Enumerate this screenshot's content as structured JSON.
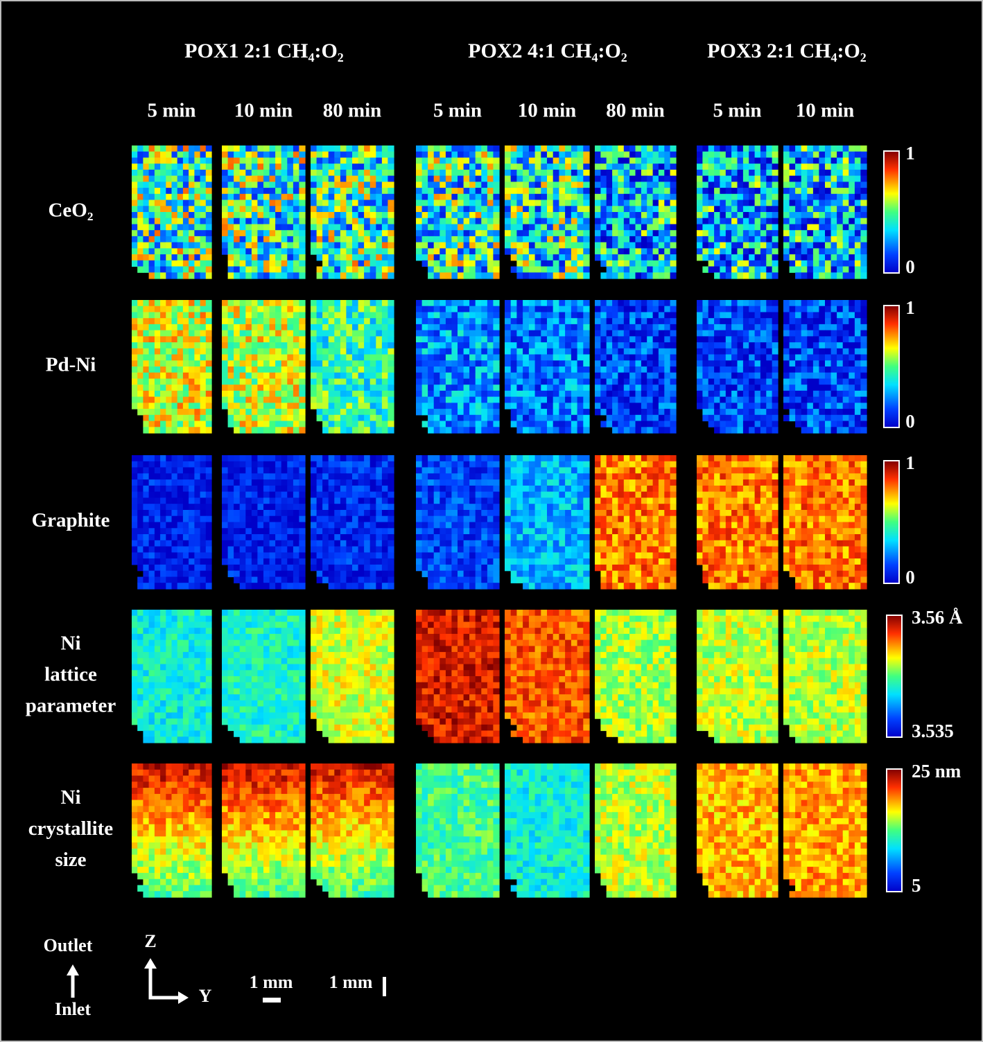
{
  "groups": [
    {
      "title": "POX1 2:1 CH₄:O₂",
      "times": [
        "5 min",
        "10 min",
        "80 min"
      ]
    },
    {
      "title": "POX2 4:1 CH₄:O₂",
      "times": [
        "5 min",
        "10 min",
        "80 min"
      ]
    },
    {
      "title": "POX3 2:1 CH₄:O₂",
      "times": [
        "5 min",
        "10 min"
      ]
    }
  ],
  "rows": [
    {
      "label": [
        "CeO₂"
      ],
      "scale_max": "1",
      "scale_min": "0"
    },
    {
      "label": [
        "Pd-Ni"
      ],
      "scale_max": "1",
      "scale_min": "0"
    },
    {
      "label": [
        "Graphite"
      ],
      "scale_max": "1",
      "scale_min": "0"
    },
    {
      "label": [
        "Ni",
        "lattice",
        "parameter"
      ],
      "scale_max": "3.56 Å",
      "scale_min": "3.535"
    },
    {
      "label": [
        "Ni",
        "crystallite",
        "size"
      ],
      "scale_max": "25 nm",
      "scale_min": "5"
    }
  ],
  "legend": {
    "outlet": "Outlet",
    "inlet": "Inlet",
    "z": "Z",
    "y": "Y",
    "scale_horizontal": "1 mm",
    "scale_vertical": "1 mm"
  }
}
